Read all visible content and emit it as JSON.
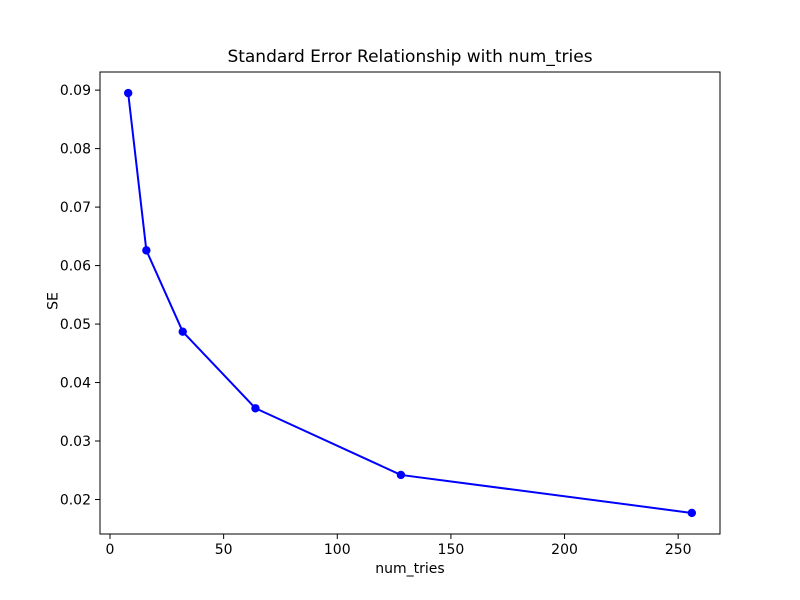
{
  "figure": {
    "background": "#ffffff"
  },
  "chart_data": {
    "type": "line",
    "title": "Standard Error Relationship with num_tries",
    "xlabel": "num_tries",
    "ylabel": "SE",
    "x": [
      8,
      16,
      32,
      64,
      128,
      256
    ],
    "y": [
      0.0895,
      0.0626,
      0.0487,
      0.0356,
      0.0242,
      0.0177
    ],
    "xticks": [
      0,
      50,
      100,
      150,
      200,
      250
    ],
    "yticks": [
      0.02,
      0.03,
      0.04,
      0.05,
      0.06,
      0.07,
      0.08,
      0.09
    ],
    "xlim": [
      -4.4,
      268.4
    ],
    "ylim": [
      0.0141,
      0.0931
    ],
    "line_color": "#0000ff",
    "marker": "circle",
    "marker_color": "#0000ff",
    "grid": false,
    "legend_position": "none",
    "axis_color": "#000000",
    "ytick_decimals": 2
  }
}
